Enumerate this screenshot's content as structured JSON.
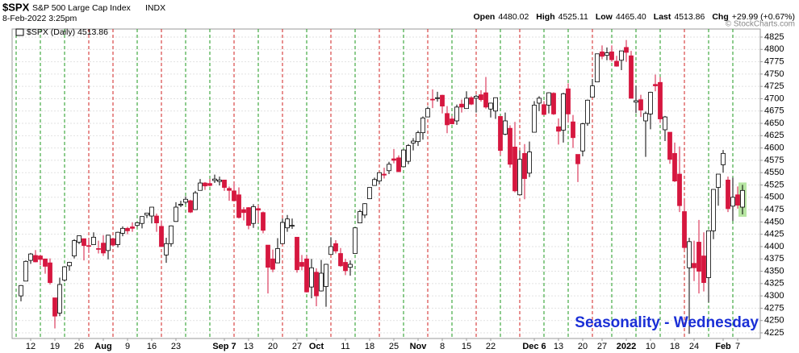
{
  "chart_data": {
    "type": "candlestick",
    "symbol": "$SPX",
    "title": "S&P 500 Large Cap Index",
    "exchange": "INDX",
    "timestamp": "8-Feb-2022 3:25pm",
    "quote": [
      {
        "label": "Open",
        "value": "4480.02"
      },
      {
        "label": "High",
        "value": "4525.11"
      },
      {
        "label": "Low",
        "value": "4465.40"
      },
      {
        "label": "Last",
        "value": "4513.86"
      },
      {
        "label": "Chg",
        "value": "+29.99 (+0.67%)"
      }
    ],
    "legend": "$SPX (Daily) 4513.86",
    "watermark": "© StockCharts.com",
    "annotation": "Seasonality - Wednesday",
    "up_color": "#ffffff",
    "down_color": "#d6173f",
    "ylim": [
      4225,
      4825
    ],
    "yticks": [
      4225,
      4250,
      4275,
      4300,
      4325,
      4350,
      4375,
      4400,
      4425,
      4450,
      4475,
      4500,
      4525,
      4550,
      4575,
      4600,
      4625,
      4650,
      4675,
      4700,
      4725,
      4750,
      4775,
      4800,
      4825
    ],
    "categories": [
      null,
      null,
      "12",
      null,
      null,
      null,
      null,
      "19",
      null,
      null,
      null,
      null,
      "26",
      null,
      null,
      null,
      null,
      "Aug",
      null,
      null,
      null,
      null,
      "9",
      null,
      null,
      null,
      null,
      "16",
      null,
      null,
      null,
      null,
      "23",
      null,
      null,
      null,
      null,
      null,
      null,
      null,
      null,
      null,
      "Sep 7",
      null,
      null,
      null,
      null,
      "13",
      null,
      null,
      null,
      null,
      "20",
      null,
      null,
      null,
      null,
      "27",
      null,
      null,
      null,
      "Oct",
      null,
      null,
      null,
      null,
      null,
      "11",
      null,
      null,
      null,
      null,
      "18",
      null,
      null,
      null,
      null,
      "25",
      null,
      null,
      null,
      null,
      "Nov",
      null,
      null,
      null,
      null,
      "8",
      null,
      null,
      null,
      null,
      "15",
      null,
      null,
      null,
      null,
      "22",
      null,
      null,
      null,
      null,
      null,
      null,
      null,
      null,
      "Dec 6",
      null,
      null,
      null,
      null,
      "13",
      null,
      null,
      null,
      null,
      "20",
      null,
      null,
      null,
      "27",
      null,
      null,
      null,
      null,
      "2022",
      null,
      null,
      null,
      null,
      "10",
      null,
      null,
      null,
      null,
      "18",
      null,
      null,
      null,
      "24",
      null,
      null,
      null,
      null,
      null,
      "Feb",
      null,
      null,
      "7",
      null
    ],
    "candles": [
      {
        "open": 4300,
        "high": 4322,
        "low": 4289,
        "close": 4321
      },
      {
        "open": 4330,
        "high": 4372,
        "low": 4330,
        "close": 4370
      },
      {
        "open": 4372,
        "high": 4387,
        "low": 4365,
        "close": 4385
      },
      {
        "open": 4382,
        "high": 4393,
        "low": 4368,
        "close": 4369
      },
      {
        "open": 4381,
        "high": 4383,
        "low": 4362,
        "close": 4374
      },
      {
        "open": 4375,
        "high": 4375,
        "low": 4345,
        "close": 4360
      },
      {
        "open": 4367,
        "high": 4376,
        "low": 4323,
        "close": 4327
      },
      {
        "open": 4296,
        "high": 4296,
        "low": 4234,
        "close": 4259
      },
      {
        "open": 4265,
        "high": 4337,
        "low": 4259,
        "close": 4323
      },
      {
        "open": 4332,
        "high": 4360,
        "low": 4329,
        "close": 4359
      },
      {
        "open": 4361,
        "high": 4369,
        "low": 4351,
        "close": 4368
      },
      {
        "open": 4381,
        "high": 4415,
        "low": 4376,
        "close": 4412
      },
      {
        "open": 4409,
        "high": 4422,
        "low": 4405,
        "close": 4422
      },
      {
        "open": 4416,
        "high": 4416,
        "low": 4372,
        "close": 4402
      },
      {
        "open": 4402,
        "high": 4416,
        "low": 4387,
        "close": 4401
      },
      {
        "open": 4404,
        "high": 4429,
        "low": 4404,
        "close": 4419
      },
      {
        "open": 4396,
        "high": 4412,
        "low": 4386,
        "close": 4395
      },
      {
        "open": 4407,
        "high": 4423,
        "low": 4381,
        "close": 4387
      },
      {
        "open": 4392,
        "high": 4424,
        "low": 4374,
        "close": 4423
      },
      {
        "open": 4416,
        "high": 4417,
        "low": 4400,
        "close": 4403
      },
      {
        "open": 4404,
        "high": 4430,
        "low": 4398,
        "close": 4429
      },
      {
        "open": 4427,
        "high": 4441,
        "low": 4421,
        "close": 4437
      },
      {
        "open": 4437,
        "high": 4440,
        "low": 4425,
        "close": 4432
      },
      {
        "open": 4440,
        "high": 4449,
        "low": 4430,
        "close": 4437
      },
      {
        "open": 4443,
        "high": 4449,
        "low": 4440,
        "close": 4448
      },
      {
        "open": 4447,
        "high": 4461,
        "low": 4437,
        "close": 4461
      },
      {
        "open": 4464,
        "high": 4468,
        "low": 4458,
        "close": 4468
      },
      {
        "open": 4462,
        "high": 4480,
        "low": 4447,
        "close": 4480
      },
      {
        "open": 4462,
        "high": 4467,
        "low": 4430,
        "close": 4448
      },
      {
        "open": 4441,
        "high": 4453,
        "low": 4400,
        "close": 4400
      },
      {
        "open": 4383,
        "high": 4418,
        "low": 4367,
        "close": 4406
      },
      {
        "open": 4406,
        "high": 4443,
        "low": 4400,
        "close": 4442
      },
      {
        "open": 4451,
        "high": 4490,
        "low": 4450,
        "close": 4480
      },
      {
        "open": 4484,
        "high": 4493,
        "low": 4480,
        "close": 4486
      },
      {
        "open": 4490,
        "high": 4502,
        "low": 4486,
        "close": 4496
      },
      {
        "open": 4493,
        "high": 4495,
        "low": 4468,
        "close": 4470
      },
      {
        "open": 4475,
        "high": 4513,
        "low": 4475,
        "close": 4509
      },
      {
        "open": 4514,
        "high": 4537,
        "low": 4514,
        "close": 4529
      },
      {
        "open": 4529,
        "high": 4531,
        "low": 4515,
        "close": 4523
      },
      {
        "open": 4528,
        "high": 4537,
        "low": 4522,
        "close": 4524
      },
      {
        "open": 4534,
        "high": 4546,
        "low": 4529,
        "close": 4537
      },
      {
        "open": 4532,
        "high": 4542,
        "low": 4524,
        "close": 4535
      },
      {
        "open": 4535,
        "high": 4535,
        "low": 4513,
        "close": 4520
      },
      {
        "open": 4518,
        "high": 4522,
        "low": 4493,
        "close": 4514
      },
      {
        "open": 4513,
        "high": 4529,
        "low": 4493,
        "close": 4493
      },
      {
        "open": 4505,
        "high": 4520,
        "low": 4457,
        "close": 4459
      },
      {
        "open": 4475,
        "high": 4480,
        "low": 4453,
        "close": 4469
      },
      {
        "open": 4479,
        "high": 4480,
        "low": 4435,
        "close": 4443
      },
      {
        "open": 4447,
        "high": 4486,
        "low": 4438,
        "close": 4481
      },
      {
        "open": 4477,
        "high": 4485,
        "low": 4448,
        "close": 4474
      },
      {
        "open": 4469,
        "high": 4471,
        "low": 4427,
        "close": 4433
      },
      {
        "open": 4403,
        "high": 4403,
        "low": 4305,
        "close": 4358
      },
      {
        "open": 4375,
        "high": 4394,
        "low": 4348,
        "close": 4354
      },
      {
        "open": 4367,
        "high": 4417,
        "low": 4367,
        "close": 4396
      },
      {
        "open": 4406,
        "high": 4457,
        "low": 4406,
        "close": 4449
      },
      {
        "open": 4438,
        "high": 4464,
        "low": 4430,
        "close": 4456
      },
      {
        "open": 4443,
        "high": 4457,
        "low": 4436,
        "close": 4443
      },
      {
        "open": 4419,
        "high": 4419,
        "low": 4347,
        "close": 4353
      },
      {
        "open": 4368,
        "high": 4383,
        "low": 4352,
        "close": 4360
      },
      {
        "open": 4375,
        "high": 4382,
        "low": 4307,
        "close": 4308
      },
      {
        "open": 4318,
        "high": 4375,
        "low": 4295,
        "close": 4357
      },
      {
        "open": 4348,
        "high": 4356,
        "low": 4279,
        "close": 4300
      },
      {
        "open": 4310,
        "high": 4373,
        "low": 4309,
        "close": 4346
      },
      {
        "open": 4319,
        "high": 4365,
        "low": 4278,
        "close": 4364
      },
      {
        "open": 4384,
        "high": 4419,
        "low": 4384,
        "close": 4400
      },
      {
        "open": 4406,
        "high": 4413,
        "low": 4386,
        "close": 4391
      },
      {
        "open": 4386,
        "high": 4397,
        "low": 4359,
        "close": 4361
      },
      {
        "open": 4368,
        "high": 4375,
        "low": 4342,
        "close": 4351
      },
      {
        "open": 4358,
        "high": 4372,
        "low": 4341,
        "close": 4364
      },
      {
        "open": 4386,
        "high": 4439,
        "low": 4386,
        "close": 4438
      },
      {
        "open": 4448,
        "high": 4475,
        "low": 4448,
        "close": 4471
      },
      {
        "open": 4464,
        "high": 4488,
        "low": 4458,
        "close": 4487
      },
      {
        "open": 4497,
        "high": 4520,
        "low": 4497,
        "close": 4520
      },
      {
        "open": 4524,
        "high": 4540,
        "low": 4524,
        "close": 4536
      },
      {
        "open": 4533,
        "high": 4550,
        "low": 4527,
        "close": 4550
      },
      {
        "open": 4547,
        "high": 4560,
        "low": 4538,
        "close": 4545
      },
      {
        "open": 4554,
        "high": 4572,
        "low": 4547,
        "close": 4567
      },
      {
        "open": 4578,
        "high": 4598,
        "low": 4569,
        "close": 4575
      },
      {
        "open": 4580,
        "high": 4585,
        "low": 4551,
        "close": 4552
      },
      {
        "open": 4562,
        "high": 4597,
        "low": 4562,
        "close": 4596
      },
      {
        "open": 4573,
        "high": 4608,
        "low": 4567,
        "close": 4605
      },
      {
        "open": 4610,
        "high": 4620,
        "low": 4595,
        "close": 4614
      },
      {
        "open": 4613,
        "high": 4635,
        "low": 4604,
        "close": 4631
      },
      {
        "open": 4631,
        "high": 4664,
        "low": 4617,
        "close": 4661
      },
      {
        "open": 4663,
        "high": 4684,
        "low": 4663,
        "close": 4680
      },
      {
        "open": 4699,
        "high": 4719,
        "low": 4681,
        "close": 4698
      },
      {
        "open": 4702,
        "high": 4714,
        "low": 4694,
        "close": 4702
      },
      {
        "open": 4707,
        "high": 4708,
        "low": 4670,
        "close": 4685
      },
      {
        "open": 4670,
        "high": 4685,
        "low": 4630,
        "close": 4647
      },
      {
        "open": 4659,
        "high": 4665,
        "low": 4648,
        "close": 4649
      },
      {
        "open": 4655,
        "high": 4688,
        "low": 4647,
        "close": 4683
      },
      {
        "open": 4689,
        "high": 4698,
        "low": 4672,
        "close": 4683
      },
      {
        "open": 4680,
        "high": 4715,
        "low": 4680,
        "close": 4701
      },
      {
        "open": 4702,
        "high": 4705,
        "low": 4687,
        "close": 4689
      },
      {
        "open": 4701,
        "high": 4708,
        "low": 4672,
        "close": 4705
      },
      {
        "open": 4708,
        "high": 4717,
        "low": 4694,
        "close": 4698
      },
      {
        "open": 4712,
        "high": 4744,
        "low": 4680,
        "close": 4683
      },
      {
        "open": 4679,
        "high": 4692,
        "low": 4662,
        "close": 4691
      },
      {
        "open": 4675,
        "high": 4702,
        "low": 4659,
        "close": 4702
      },
      {
        "open": 4664,
        "high": 4664,
        "low": 4585,
        "close": 4595
      },
      {
        "open": 4628,
        "high": 4672,
        "low": 4626,
        "close": 4655
      },
      {
        "open": 4640,
        "high": 4646,
        "low": 4560,
        "close": 4567
      },
      {
        "open": 4602,
        "high": 4653,
        "low": 4510,
        "close": 4513
      },
      {
        "open": 4505,
        "high": 4595,
        "low": 4505,
        "close": 4577
      },
      {
        "open": 4589,
        "high": 4608,
        "low": 4496,
        "close": 4538
      },
      {
        "open": 4549,
        "high": 4613,
        "low": 4541,
        "close": 4592
      },
      {
        "open": 4632,
        "high": 4695,
        "low": 4632,
        "close": 4687
      },
      {
        "open": 4691,
        "high": 4705,
        "low": 4675,
        "close": 4701
      },
      {
        "open": 4688,
        "high": 4695,
        "low": 4666,
        "close": 4668
      },
      {
        "open": 4687,
        "high": 4713,
        "low": 4670,
        "close": 4712
      },
      {
        "open": 4711,
        "high": 4713,
        "low": 4667,
        "close": 4669
      },
      {
        "open": 4643,
        "high": 4660,
        "low": 4607,
        "close": 4634
      },
      {
        "open": 4636,
        "high": 4712,
        "low": 4611,
        "close": 4710
      },
      {
        "open": 4720,
        "high": 4731,
        "low": 4652,
        "close": 4669
      },
      {
        "open": 4653,
        "high": 4667,
        "low": 4600,
        "close": 4621
      },
      {
        "open": 4587,
        "high": 4587,
        "low": 4531,
        "close": 4568
      },
      {
        "open": 4594,
        "high": 4651,
        "low": 4583,
        "close": 4649
      },
      {
        "open": 4650,
        "high": 4698,
        "low": 4645,
        "close": 4697
      },
      {
        "open": 4703,
        "high": 4740,
        "low": 4703,
        "close": 4726
      },
      {
        "open": 4734,
        "high": 4791,
        "low": 4734,
        "close": 4791
      },
      {
        "open": 4795,
        "high": 4808,
        "low": 4780,
        "close": 4786
      },
      {
        "open": 4788,
        "high": 4804,
        "low": 4778,
        "close": 4793
      },
      {
        "open": 4795,
        "high": 4808,
        "low": 4775,
        "close": 4779
      },
      {
        "open": 4776,
        "high": 4787,
        "low": 4765,
        "close": 4766
      },
      {
        "open": 4778,
        "high": 4797,
        "low": 4758,
        "close": 4797
      },
      {
        "open": 4804,
        "high": 4819,
        "low": 4775,
        "close": 4794
      },
      {
        "open": 4787,
        "high": 4797,
        "low": 4700,
        "close": 4701
      },
      {
        "open": 4693,
        "high": 4726,
        "low": 4671,
        "close": 4696
      },
      {
        "open": 4698,
        "high": 4708,
        "low": 4663,
        "close": 4677
      },
      {
        "open": 4655,
        "high": 4674,
        "low": 4582,
        "close": 4670
      },
      {
        "open": 4669,
        "high": 4714,
        "low": 4638,
        "close": 4713
      },
      {
        "open": 4729,
        "high": 4749,
        "low": 4715,
        "close": 4726
      },
      {
        "open": 4733,
        "high": 4744,
        "low": 4651,
        "close": 4659
      },
      {
        "open": 4637,
        "high": 4665,
        "low": 4614,
        "close": 4663
      },
      {
        "open": 4632,
        "high": 4632,
        "low": 4568,
        "close": 4577
      },
      {
        "open": 4589,
        "high": 4611,
        "low": 4531,
        "close": 4533
      },
      {
        "open": 4547,
        "high": 4603,
        "low": 4470,
        "close": 4483
      },
      {
        "open": 4471,
        "high": 4495,
        "low": 4395,
        "close": 4398
      },
      {
        "open": 4357,
        "high": 4418,
        "low": 4223,
        "close": 4410
      },
      {
        "open": 4366,
        "high": 4412,
        "low": 4330,
        "close": 4357
      },
      {
        "open": 4409,
        "high": 4454,
        "low": 4305,
        "close": 4350
      },
      {
        "open": 4381,
        "high": 4429,
        "low": 4309,
        "close": 4327
      },
      {
        "open": 4337,
        "high": 4432,
        "low": 4287,
        "close": 4432
      },
      {
        "open": 4432,
        "high": 4516,
        "low": 4415,
        "close": 4516
      },
      {
        "open": 4520,
        "high": 4547,
        "low": 4483,
        "close": 4547
      },
      {
        "open": 4566,
        "high": 4596,
        "low": 4550,
        "close": 4589
      },
      {
        "open": 4535,
        "high": 4542,
        "low": 4470,
        "close": 4477
      },
      {
        "open": 4482,
        "high": 4540,
        "low": 4452,
        "close": 4500
      },
      {
        "open": 4505,
        "high": 4522,
        "low": 4477,
        "close": 4484
      },
      {
        "open": 4480.02,
        "high": 4525.11,
        "low": 4465.4,
        "close": 4513.86
      }
    ]
  }
}
